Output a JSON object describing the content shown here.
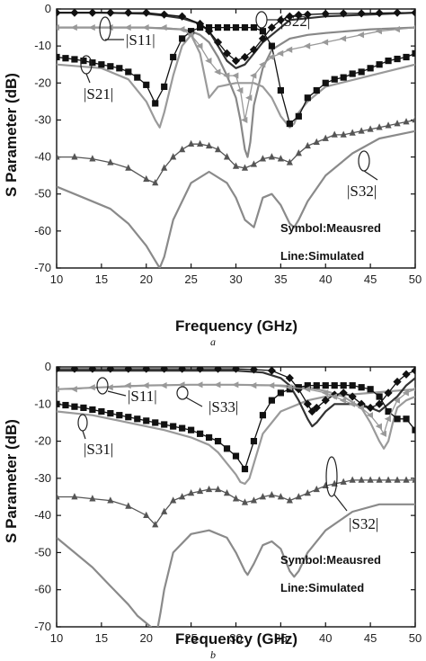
{
  "chart_data": [
    {
      "type": "line",
      "sublabel": "a",
      "xlabel": "Frequency (GHz)",
      "ylabel": "S Parameter (dB)",
      "xlim": [
        10,
        50
      ],
      "ylim": [
        -70,
        0
      ],
      "xticks": [
        "10",
        "15",
        "20",
        "25",
        "30",
        "35",
        "40",
        "45",
        "50"
      ],
      "yticks": [
        "0",
        "-10",
        "-20",
        "-30",
        "-40",
        "-50",
        "-60",
        "-70"
      ],
      "notes": [
        "Symbol:Meausred",
        "Line:Simulated"
      ],
      "annotations": [
        "|S11|",
        "|S22|",
        "|S21|",
        "|S32|"
      ],
      "series": [
        {
          "color": "#333333",
          "width": 2.2,
          "x": [
            10,
            15,
            20,
            22,
            24,
            26,
            27,
            28,
            29,
            30,
            31,
            32,
            33,
            34,
            35,
            36,
            40,
            45,
            50
          ],
          "y": [
            -1,
            -1,
            -1.3,
            -1.8,
            -2.5,
            -4,
            -6,
            -10,
            -14,
            -16,
            -15,
            -12,
            -9,
            -7,
            -5,
            -3,
            -2,
            -1.5,
            -1
          ]
        },
        {
          "color": "#888888",
          "width": 2.2,
          "x": [
            10,
            15,
            20,
            24,
            25,
            26,
            27,
            28,
            29,
            30,
            30.5,
            31,
            31.3,
            31.6,
            32,
            33,
            34,
            36,
            38,
            40,
            45,
            50
          ],
          "y": [
            -5,
            -5,
            -5,
            -5.5,
            -6,
            -7,
            -9,
            -13,
            -18,
            -24,
            -30,
            -38,
            -40,
            -36,
            -26,
            -16,
            -11,
            -8,
            -7,
            -6.5,
            -5.5,
            -5
          ]
        },
        {
          "color": "#9a9a9a",
          "width": 2.2,
          "x": [
            10,
            15,
            18,
            20,
            21,
            21.5,
            22,
            23,
            24,
            25,
            26,
            27,
            28,
            30,
            32,
            33,
            34,
            35,
            36,
            36.5,
            37,
            38,
            40,
            45,
            50
          ],
          "y": [
            -15,
            -16,
            -19,
            -25,
            -30,
            -32,
            -28,
            -18,
            -10,
            -7,
            -12,
            -24,
            -21,
            -20,
            -20,
            -21,
            -24,
            -29,
            -32,
            -31,
            -28,
            -25,
            -21,
            -18,
            -15
          ]
        },
        {
          "color": "#8a8a8a",
          "width": 2.2,
          "x": [
            10,
            13,
            16,
            18,
            20,
            21,
            21.5,
            22,
            23,
            25,
            27,
            29,
            30,
            31,
            32,
            33,
            34,
            35,
            36,
            36.5,
            37,
            38,
            40,
            43,
            46,
            50
          ],
          "y": [
            -48,
            -51,
            -54,
            -58,
            -64,
            -68,
            -70,
            -67,
            -57,
            -47,
            -44,
            -47,
            -51,
            -57,
            -59,
            -51,
            -50,
            -53,
            -58,
            -59,
            -57,
            -52,
            -45,
            -39,
            -35,
            -33
          ]
        }
      ],
      "markers": [
        {
          "shape": "square",
          "color": "#111111",
          "x": [
            10,
            11,
            12,
            13,
            14,
            15,
            16,
            17,
            18,
            19,
            20,
            21,
            22,
            23,
            24,
            25,
            26,
            27,
            28,
            29,
            30,
            31,
            32,
            33,
            34,
            35,
            36,
            37,
            38,
            39,
            40,
            41,
            42,
            43,
            44,
            45,
            46,
            47,
            48,
            49,
            50
          ],
          "y": [
            -13,
            -13.3,
            -13.6,
            -14,
            -14.5,
            -15,
            -15.5,
            -16,
            -17,
            -18.5,
            -20.5,
            -25.5,
            -21,
            -13,
            -8,
            -6,
            -5,
            -5,
            -5,
            -5,
            -5,
            -5,
            -5,
            -6,
            -10,
            -22,
            -31,
            -29,
            -24,
            -22,
            -20,
            -19,
            -18.5,
            -17.5,
            -17,
            -16,
            -15,
            -14,
            -13.5,
            -13,
            -12
          ]
        },
        {
          "shape": "diamond",
          "color": "#111111",
          "x": [
            10,
            12,
            14,
            16,
            18,
            20,
            22,
            24,
            26,
            27,
            28,
            29,
            30,
            31,
            32,
            33,
            34,
            35,
            36,
            37,
            38,
            40,
            42,
            44,
            46,
            48,
            50
          ],
          "y": [
            -1,
            -1,
            -1,
            -1,
            -1,
            -1,
            -1.5,
            -2,
            -4,
            -6,
            -9,
            -12,
            -14,
            -13,
            -11,
            -8,
            -5,
            -3,
            -2,
            -1.6,
            -1.5,
            -1.3,
            -1.2,
            -1.2,
            -1.1,
            -1,
            -1
          ]
        },
        {
          "shape": "triangle-left",
          "color": "#999999",
          "x": [
            10,
            12,
            14,
            16,
            18,
            20,
            22,
            24,
            25,
            26,
            27,
            28,
            29,
            30,
            30.5,
            31,
            31.5,
            32,
            33,
            34,
            35,
            36,
            38,
            40,
            42,
            44,
            46,
            48,
            50
          ],
          "y": [
            -5,
            -5,
            -5,
            -5,
            -5,
            -5,
            -5,
            -5.5,
            -7,
            -10,
            -14,
            -17,
            -18,
            -18,
            -22,
            -30,
            -24,
            -18,
            -15,
            -13,
            -12,
            -11,
            -10,
            -9,
            -8,
            -7,
            -6,
            -5.5,
            -5
          ]
        },
        {
          "shape": "triangle-up",
          "color": "#555555",
          "x": [
            10,
            12,
            14,
            16,
            18,
            20,
            21,
            22,
            23,
            24,
            25,
            26,
            27,
            28,
            29,
            30,
            31,
            32,
            33,
            34,
            35,
            36,
            37,
            38,
            39,
            40,
            41,
            42,
            43,
            44,
            45,
            46,
            47,
            48,
            49,
            50
          ],
          "y": [
            -40,
            -40,
            -40.5,
            -41.5,
            -43,
            -46,
            -47,
            -43,
            -40,
            -38,
            -36.5,
            -36.5,
            -37,
            -38,
            -40,
            -42.5,
            -43,
            -42,
            -40.5,
            -40,
            -40.5,
            -41.5,
            -39,
            -37,
            -36,
            -35,
            -34,
            -34,
            -33.5,
            -33,
            -32.5,
            -32,
            -31.5,
            -31,
            -30.5,
            -30
          ]
        }
      ]
    },
    {
      "type": "line",
      "sublabel": "b",
      "xlabel": "Frequency (GHz)",
      "ylabel": "S Parameter (dB)",
      "xlim": [
        10,
        50
      ],
      "ylim": [
        -70,
        0
      ],
      "xticks": [
        "10",
        "15",
        "20",
        "25",
        "30",
        "35",
        "40",
        "45",
        "50"
      ],
      "yticks": [
        "0",
        "-10",
        "-20",
        "-30",
        "-40",
        "-50",
        "-60",
        "-70"
      ],
      "notes": [
        "Symbol:Meausred",
        "Line:Simulated"
      ],
      "annotations": [
        "|S11|",
        "|S33|",
        "|S31|",
        "|S32|"
      ],
      "series": [
        {
          "color": "#9a9a9a",
          "width": 2.2,
          "x": [
            10,
            14,
            18,
            22,
            25,
            27,
            28,
            29,
            30,
            30.5,
            31,
            31.5,
            32,
            33,
            35,
            38,
            40,
            45,
            50
          ],
          "y": [
            -12,
            -13,
            -15,
            -17,
            -19,
            -21,
            -23,
            -26,
            -29,
            -31,
            -31.5,
            -30,
            -26,
            -18,
            -12,
            -9,
            -8,
            -7,
            -6
          ]
        },
        {
          "color": "#333333",
          "width": 2.2,
          "x": [
            10,
            15,
            20,
            25,
            30,
            33,
            35,
            36,
            37,
            38,
            38.5,
            39,
            40,
            41,
            42,
            43,
            44,
            45,
            46,
            47,
            48,
            49,
            50
          ],
          "y": [
            -1,
            -1,
            -1,
            -1,
            -1,
            -1.5,
            -3,
            -5,
            -9,
            -14,
            -16,
            -15,
            -12,
            -10,
            -10,
            -10,
            -10.5,
            -11,
            -12,
            -10,
            -8,
            -5,
            -3
          ]
        },
        {
          "color": "#9a9a9a",
          "width": 2.2,
          "x": [
            10,
            15,
            20,
            25,
            30,
            35,
            38,
            40,
            42,
            44,
            45,
            46,
            46.5,
            47,
            47.5,
            48,
            49,
            50
          ],
          "y": [
            -6,
            -5.5,
            -5,
            -4.8,
            -4.8,
            -5,
            -5.5,
            -6.5,
            -8,
            -11,
            -15,
            -20,
            -22,
            -20,
            -15,
            -11,
            -9,
            -8
          ]
        },
        {
          "color": "#8a8a8a",
          "width": 2.2,
          "x": [
            10,
            12,
            14,
            16,
            18,
            19,
            20,
            20.5,
            21,
            21.3,
            21.6,
            22,
            23,
            25,
            27,
            29,
            30,
            31,
            31.3,
            32,
            33,
            34,
            35,
            36,
            36.5,
            37,
            38,
            40,
            43,
            46,
            50
          ],
          "y": [
            -46,
            -50,
            -54,
            -59,
            -64,
            -67,
            -69,
            -70,
            -72,
            -70,
            -66,
            -60,
            -50,
            -45,
            -44,
            -46,
            -50,
            -55,
            -56,
            -53,
            -48,
            -47,
            -49,
            -55,
            -56.5,
            -55,
            -50,
            -44,
            -39,
            -37,
            -37
          ]
        }
      ],
      "markers": [
        {
          "shape": "square",
          "color": "#111111",
          "x": [
            10,
            11,
            12,
            13,
            14,
            15,
            16,
            17,
            18,
            19,
            20,
            21,
            22,
            23,
            24,
            25,
            26,
            27,
            28,
            29,
            30,
            31,
            32,
            33,
            34,
            35,
            36,
            37,
            38,
            39,
            40,
            41,
            42,
            43,
            44,
            45,
            46,
            47,
            48,
            49,
            50
          ],
          "y": [
            -10,
            -10.3,
            -10.7,
            -11,
            -11.5,
            -12,
            -12.5,
            -13,
            -13.5,
            -14,
            -14.5,
            -15,
            -15.5,
            -16,
            -16.5,
            -17,
            -18,
            -19,
            -20,
            -22,
            -24,
            -27.5,
            -20,
            -13,
            -9,
            -7,
            -6,
            -5.5,
            -5,
            -5,
            -5,
            -5,
            -5,
            -5,
            -5.5,
            -6,
            -8,
            -12,
            -14,
            -14,
            -17
          ]
        },
        {
          "shape": "diamond",
          "color": "#111111",
          "x": [
            10,
            12,
            14,
            16,
            18,
            20,
            22,
            24,
            26,
            28,
            30,
            32,
            34,
            36,
            37,
            38,
            38.5,
            39,
            40,
            41,
            42,
            43,
            44,
            45,
            46,
            47,
            48,
            49,
            50
          ],
          "y": [
            -0.5,
            -0.5,
            -0.5,
            -0.5,
            -0.5,
            -0.5,
            -0.5,
            -0.5,
            -0.5,
            -0.5,
            -0.5,
            -0.7,
            -1,
            -3,
            -6,
            -10,
            -12,
            -11,
            -9,
            -7.5,
            -7,
            -8,
            -10,
            -11,
            -10,
            -7,
            -4,
            -2,
            -1
          ]
        },
        {
          "shape": "triangle-left",
          "color": "#999999",
          "x": [
            10,
            12,
            14,
            16,
            18,
            20,
            22,
            24,
            26,
            28,
            30,
            32,
            34,
            36,
            38,
            40,
            41,
            42,
            43,
            44,
            45,
            46,
            46.5,
            47,
            48,
            49,
            50
          ],
          "y": [
            -6,
            -6,
            -5.5,
            -5.5,
            -5,
            -5,
            -5,
            -4.8,
            -4.8,
            -4.8,
            -4.8,
            -5,
            -5,
            -5.5,
            -6,
            -7,
            -8,
            -9,
            -10,
            -11,
            -13,
            -16,
            -18,
            -14,
            -9,
            -7,
            -6
          ]
        },
        {
          "shape": "triangle-up",
          "color": "#555555",
          "x": [
            10,
            12,
            14,
            16,
            18,
            20,
            21,
            22,
            23,
            24,
            25,
            26,
            27,
            28,
            29,
            30,
            31,
            32,
            33,
            34,
            35,
            36,
            37,
            38,
            39,
            40,
            41,
            42,
            43,
            44,
            45,
            46,
            47,
            48,
            49,
            50
          ],
          "y": [
            -35,
            -35,
            -35.5,
            -36,
            -37.5,
            -40,
            -42.5,
            -39,
            -36,
            -35,
            -34,
            -33.5,
            -33,
            -33,
            -34,
            -35.5,
            -36.5,
            -36,
            -35,
            -34.5,
            -35,
            -36,
            -35,
            -34,
            -33,
            -32,
            -31.5,
            -31,
            -30.5,
            -30.5,
            -30.5,
            -30.5,
            -30.5,
            -30.5,
            -30.5,
            -30.5
          ]
        }
      ]
    }
  ]
}
